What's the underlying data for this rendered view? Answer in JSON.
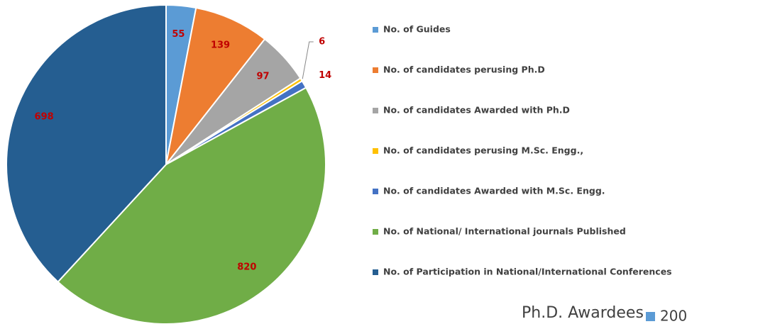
{
  "chart_data": {
    "type": "pie",
    "categories": [
      "No. of Guides",
      "No. of candidates perusing Ph.D",
      "No. of candidates Awarded with Ph.D",
      "No. of candidates perusing M.Sc. Engg.,",
      "No. of candidates Awarded with M.Sc. Engg.",
      "No. of National/ International journals Published",
      "No. of Participation in National/International Conferences"
    ],
    "values": [
      55,
      139,
      97,
      6,
      14,
      820,
      698
    ],
    "colors": [
      "#5b9bd5",
      "#ed7d31",
      "#a5a5a5",
      "#ffc000",
      "#4472c4",
      "#70ad47",
      "#255e91"
    ],
    "annotations": [
      "Ph.D. Awardees",
      "200"
    ]
  }
}
